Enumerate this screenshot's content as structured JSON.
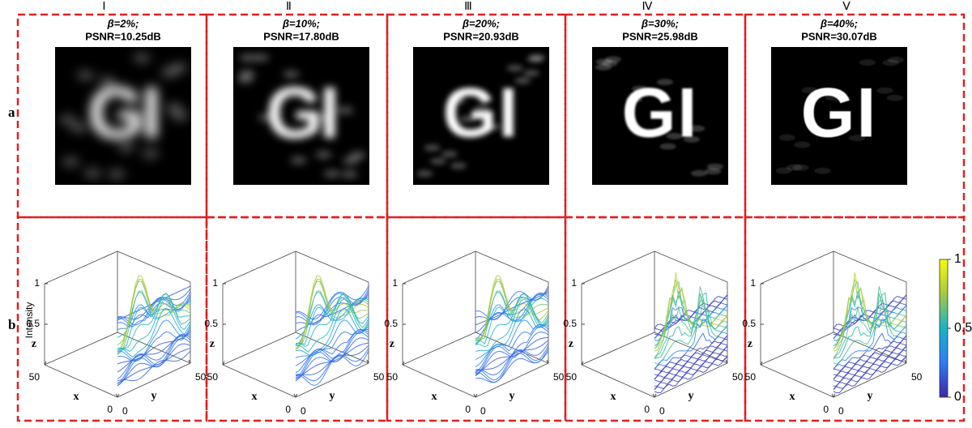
{
  "columns": [
    {
      "numeral": "Ⅰ",
      "beta": "β=2%;",
      "psnr": "PSNR=10.25dB"
    },
    {
      "numeral": "Ⅱ",
      "beta": "β=10%;",
      "psnr": "PSNR=17.80dB"
    },
    {
      "numeral": "Ⅲ",
      "beta": "β=20%;",
      "psnr": "PSNR=20.93dB"
    },
    {
      "numeral": "Ⅳ",
      "beta": "β=30%;",
      "psnr": "PSNR=25.98dB"
    },
    {
      "numeral": "Ⅴ",
      "beta": "β=40%;",
      "psnr": "PSNR=30.07dB"
    }
  ],
  "row_labels": [
    "a",
    "b"
  ],
  "image_text": "GI",
  "surface_plot": {
    "zlabel": "z",
    "zname": "Intensity",
    "xlabel": "x",
    "ylabel": "y",
    "zticks": [
      1,
      0.5
    ],
    "xticks": [
      50,
      0
    ],
    "yticks": [
      0,
      50
    ]
  },
  "colorbar": {
    "ticks": [
      1,
      0.5,
      0
    ]
  }
}
